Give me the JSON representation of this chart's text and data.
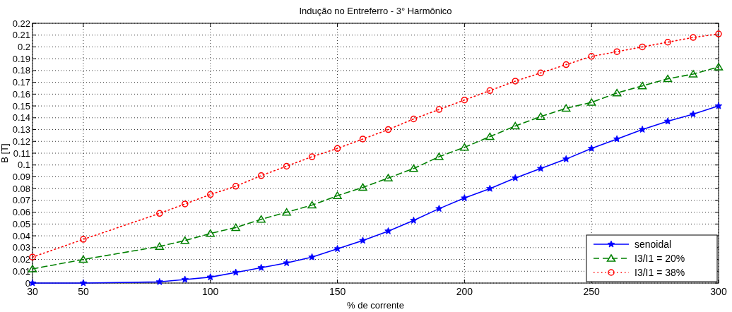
{
  "chart_data": {
    "type": "line",
    "title": "Indução no Entreferro - 3° Harmônico",
    "xlabel": "% de corrente",
    "ylabel": "B [T]",
    "x": [
      30,
      50,
      80,
      90,
      100,
      110,
      120,
      130,
      140,
      150,
      160,
      170,
      180,
      190,
      200,
      210,
      220,
      230,
      240,
      250,
      260,
      270,
      280,
      290,
      300
    ],
    "series": [
      {
        "name": "senoidal",
        "color": "#0000ff",
        "marker": "star",
        "line_style": "solid",
        "values": [
          0,
          0,
          0.001,
          0.003,
          0.005,
          0.009,
          0.013,
          0.017,
          0.022,
          0.029,
          0.036,
          0.044,
          0.053,
          0.063,
          0.072,
          0.08,
          0.089,
          0.097,
          0.105,
          0.114,
          0.122,
          0.13,
          0.137,
          0.143,
          0.15
        ]
      },
      {
        "name": "I3/I1 = 20%",
        "color": "#008000",
        "marker": "triangle",
        "line_style": "dashed",
        "values": [
          0.012,
          0.02,
          0.031,
          0.036,
          0.042,
          0.047,
          0.054,
          0.06,
          0.066,
          0.074,
          0.081,
          0.089,
          0.097,
          0.107,
          0.115,
          0.124,
          0.133,
          0.141,
          0.148,
          0.153,
          0.161,
          0.167,
          0.173,
          0.177,
          0.183
        ]
      },
      {
        "name": "I3/I1 = 38%",
        "color": "#ff0000",
        "marker": "circle",
        "line_style": "dotted",
        "values": [
          0.022,
          0.037,
          0.059,
          0.067,
          0.075,
          0.082,
          0.091,
          0.099,
          0.107,
          0.114,
          0.122,
          0.13,
          0.139,
          0.147,
          0.155,
          0.163,
          0.171,
          0.178,
          0.185,
          0.192,
          0.196,
          0.2,
          0.204,
          0.208,
          0.211
        ]
      }
    ],
    "xlim": [
      30,
      300
    ],
    "xticks": [
      30,
      50,
      100,
      150,
      200,
      250,
      300
    ],
    "ylim": [
      0,
      0.22
    ],
    "yticks": [
      0,
      0.01,
      0.02,
      0.03,
      0.04,
      0.05,
      0.06,
      0.07,
      0.08,
      0.09,
      0.1,
      0.11,
      0.12,
      0.13,
      0.14,
      0.15,
      0.16,
      0.17,
      0.18,
      0.19,
      0.2,
      0.21,
      0.22
    ],
    "grid": true,
    "legend": "bottom right"
  }
}
